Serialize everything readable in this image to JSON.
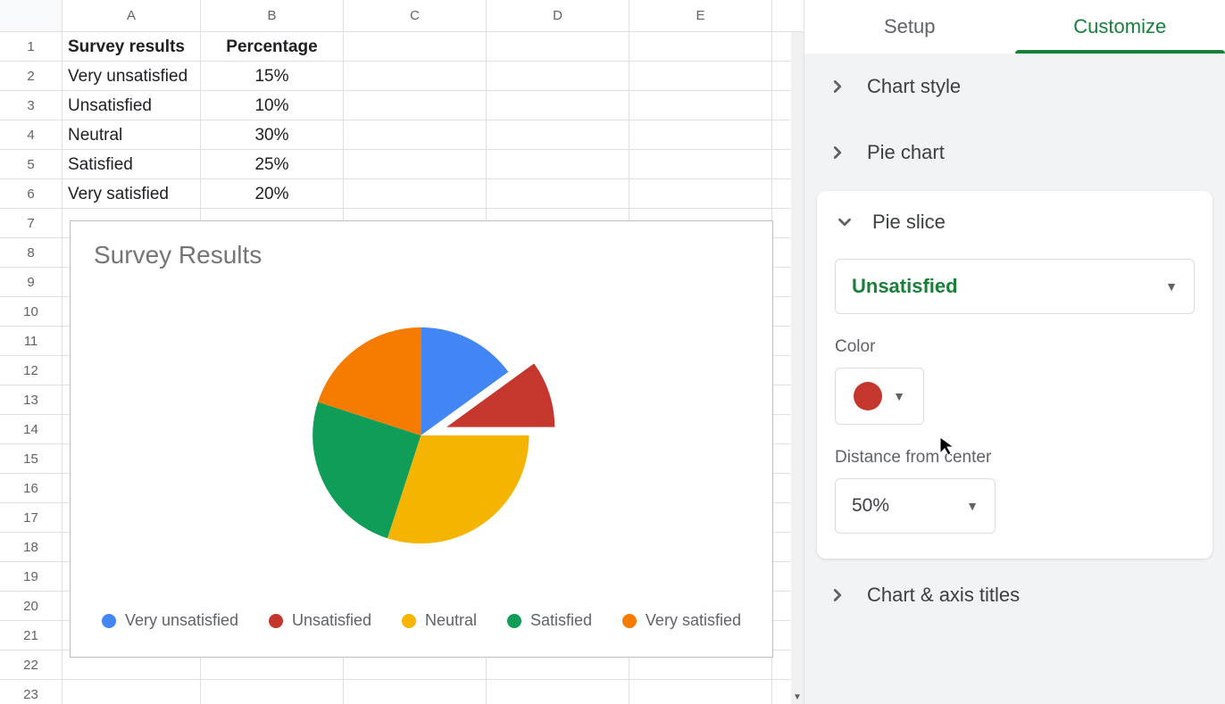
{
  "spreadsheet": {
    "col_labels": [
      "A",
      "B",
      "C",
      "D",
      "E"
    ],
    "row_count": 23,
    "headers": {
      "a": "Survey results",
      "b": "Percentage"
    },
    "data": [
      {
        "label": "Very unsatisfied",
        "pct": "15%"
      },
      {
        "label": "Unsatisfied",
        "pct": "10%"
      },
      {
        "label": "Neutral",
        "pct": "30%"
      },
      {
        "label": "Satisfied",
        "pct": "25%"
      },
      {
        "label": "Very satisfied",
        "pct": "20%"
      }
    ]
  },
  "chart": {
    "type": "pie",
    "title": "Survey Results",
    "title_fontsize": 28,
    "title_color": "#757575",
    "background_color": "#ffffff",
    "border_color": "#bdbdbd",
    "radius": 175,
    "slices": [
      {
        "label": "Very unsatisfied",
        "value": 15,
        "color": "#4285f4",
        "offset_pct": 0
      },
      {
        "label": "Unsatisfied",
        "value": 10,
        "color": "#c5372c",
        "offset_pct": 50
      },
      {
        "label": "Neutral",
        "value": 30,
        "color": "#f4b400",
        "offset_pct": 0
      },
      {
        "label": "Satisfied",
        "value": 25,
        "color": "#0f9d58",
        "offset_pct": 0
      },
      {
        "label": "Very satisfied",
        "value": 20,
        "color": "#f57c00",
        "offset_pct": 0
      }
    ],
    "legend_fontsize": 18,
    "legend_color": "#5f6368"
  },
  "sidebar": {
    "tabs": {
      "setup": "Setup",
      "customize": "Customize",
      "active": "customize"
    },
    "sections": {
      "chart_style": "Chart style",
      "pie_chart": "Pie chart",
      "pie_slice": "Pie slice",
      "chart_axis_titles": "Chart & axis titles"
    },
    "pie_slice_panel": {
      "selected_slice": "Unsatisfied",
      "color_label": "Color",
      "selected_color": "#c5372c",
      "distance_label": "Distance from center",
      "distance_value": "50%"
    },
    "accent_color": "#188038"
  }
}
